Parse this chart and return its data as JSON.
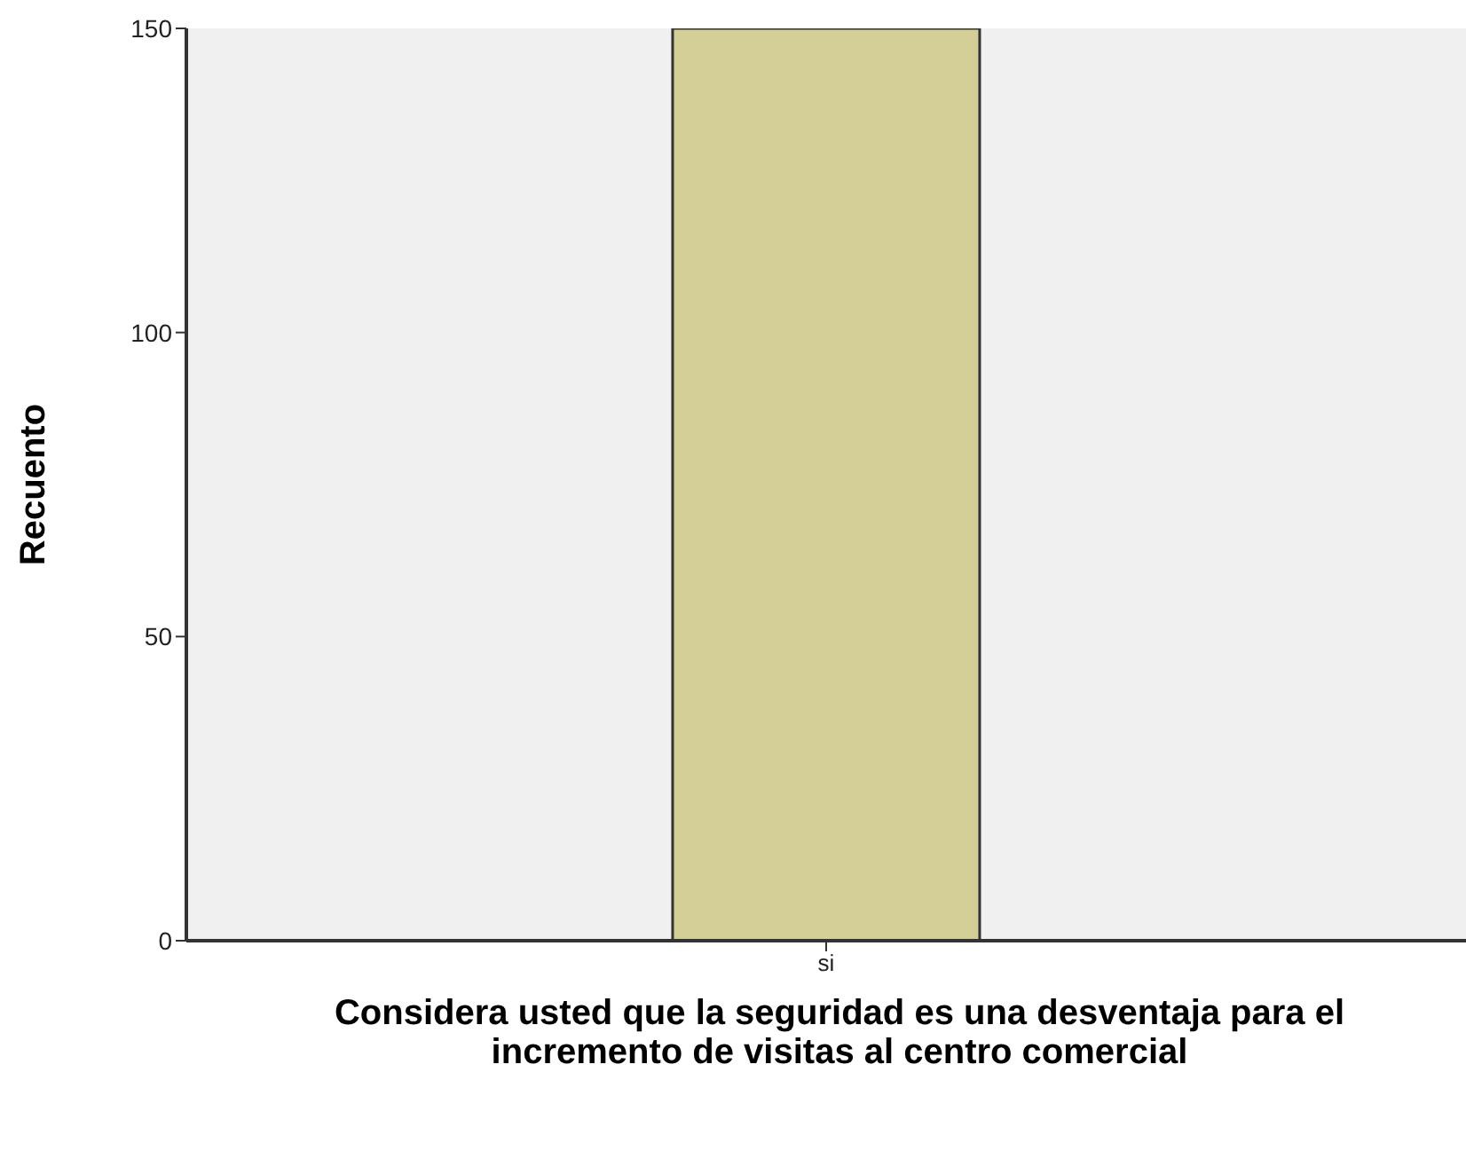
{
  "chart_data": {
    "type": "bar",
    "xlabel": "Considera usted que la seguridad es una desventaja para el incremento de visitas al centro comercial",
    "ylabel": "Recuento",
    "categories": [
      "si"
    ],
    "values": [
      150
    ],
    "color": "#d4cf96",
    "ylim": [
      0,
      150
    ],
    "yticks": [
      0,
      50,
      100,
      150
    ],
    "grid": false,
    "legend": false
  }
}
